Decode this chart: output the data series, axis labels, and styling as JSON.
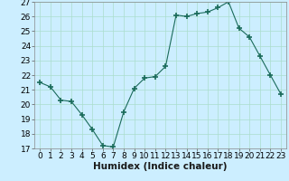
{
  "x": [
    0,
    1,
    2,
    3,
    4,
    5,
    6,
    7,
    8,
    9,
    10,
    11,
    12,
    13,
    14,
    15,
    16,
    17,
    18,
    19,
    20,
    21,
    22,
    23
  ],
  "y": [
    21.5,
    21.2,
    20.3,
    20.2,
    19.3,
    18.3,
    17.2,
    17.1,
    19.5,
    21.1,
    21.8,
    21.9,
    22.6,
    26.1,
    26.0,
    26.2,
    26.3,
    26.6,
    27.0,
    25.2,
    24.6,
    23.3,
    22.0,
    20.7
  ],
  "xlabel": "Humidex (Indice chaleur)",
  "ylim": [
    17,
    27
  ],
  "xlim": [
    -0.5,
    23.5
  ],
  "yticks": [
    17,
    18,
    19,
    20,
    21,
    22,
    23,
    24,
    25,
    26,
    27
  ],
  "xticks": [
    0,
    1,
    2,
    3,
    4,
    5,
    6,
    7,
    8,
    9,
    10,
    11,
    12,
    13,
    14,
    15,
    16,
    17,
    18,
    19,
    20,
    21,
    22,
    23
  ],
  "line_color": "#1a6b5a",
  "marker_color": "#1a6b5a",
  "bg_color": "#cceeff",
  "grid_color": "#aaddcc",
  "tick_fontsize": 6.5,
  "xlabel_fontsize": 7.5
}
